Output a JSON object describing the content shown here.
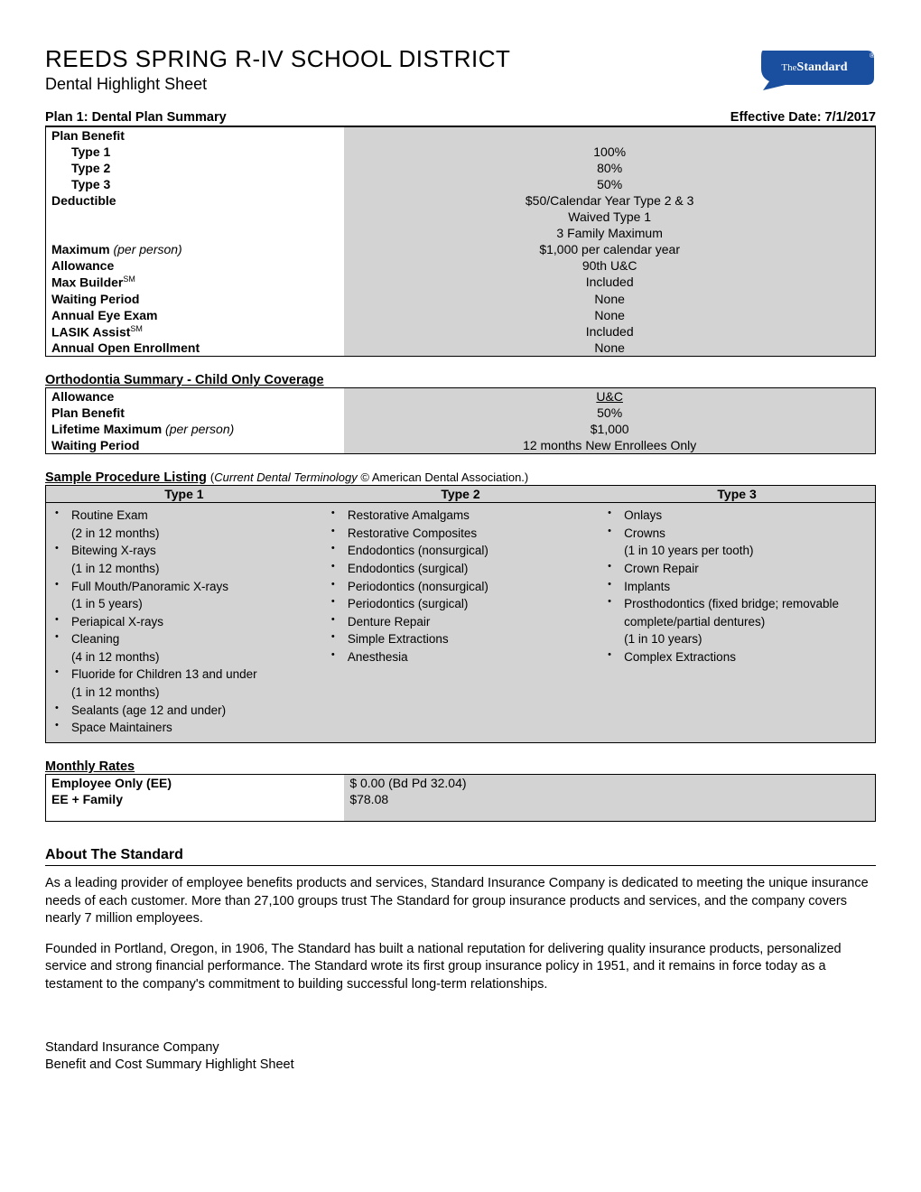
{
  "header": {
    "org": "REEDS SPRING R-IV SCHOOL DISTRICT",
    "subtitle": "Dental Highlight Sheet",
    "logo_text": "TheStandard",
    "logo_bg": "#1a4e9e",
    "logo_text_color": "#ffffff"
  },
  "plan_summary": {
    "title": "Plan 1:  Dental Plan Summary",
    "effective": "Effective Date:  7/1/2017",
    "rows": [
      {
        "label": "Plan Benefit",
        "bold": true,
        "value": ""
      },
      {
        "label": "Type 1",
        "bold": true,
        "indent": true,
        "value": "100%"
      },
      {
        "label": "Type 2",
        "bold": true,
        "indent": true,
        "value": "80%"
      },
      {
        "label": "Type 3",
        "bold": true,
        "indent": true,
        "value": "50%"
      },
      {
        "label": "Deductible",
        "bold": true,
        "value": "$50/Calendar Year Type 2 & 3"
      },
      {
        "label": "",
        "value": "Waived Type 1"
      },
      {
        "label": "",
        "value": "3 Family Maximum"
      },
      {
        "label": "Maximum",
        "bold": true,
        "suffix_italic": " (per person)",
        "value": "$1,000 per calendar year"
      },
      {
        "label": "Allowance",
        "bold": true,
        "value": "90th U&C"
      },
      {
        "label": "Max Builder",
        "bold": true,
        "sup": "SM",
        "value": "Included"
      },
      {
        "label": "Waiting Period",
        "bold": true,
        "value": "None"
      },
      {
        "label": "Annual Eye Exam",
        "bold": true,
        "value": "None"
      },
      {
        "label": "LASIK Assist",
        "bold": true,
        "sup": "SM",
        "value": "Included"
      },
      {
        "label": "Annual Open Enrollment",
        "bold": true,
        "value": "None"
      }
    ]
  },
  "ortho": {
    "title": "Orthodontia Summary - Child Only Coverage",
    "rows": [
      {
        "label": "Allowance",
        "bold": true,
        "value": "U&C",
        "underline": true
      },
      {
        "label": "Plan Benefit",
        "bold": true,
        "value": "50%"
      },
      {
        "label": "Lifetime Maximum",
        "bold": true,
        "suffix_italic": " (per person)",
        "value": "$1,000"
      },
      {
        "label": "Waiting Period",
        "bold": true,
        "value": "12 months New Enrollees Only"
      }
    ]
  },
  "sample": {
    "title": "Sample Procedure Listing",
    "note": "(Current Dental Terminology © American Dental Association.)",
    "col_heads": [
      "Type 1",
      "Type 2",
      "Type 3"
    ],
    "type1": [
      {
        "t": "Routine Exam",
        "s": "(2 in 12 months)"
      },
      {
        "t": "Bitewing X-rays",
        "s": "(1 in 12 months)"
      },
      {
        "t": "Full Mouth/Panoramic X-rays",
        "s": "(1 in 5 years)"
      },
      {
        "t": "Periapical X-rays"
      },
      {
        "t": "Cleaning",
        "s": "(4 in 12 months)"
      },
      {
        "t": "Fluoride for Children 13 and under",
        "s": "(1 in 12 months)"
      },
      {
        "t": "Sealants (age 12 and under)"
      },
      {
        "t": "Space Maintainers"
      }
    ],
    "type2": [
      {
        "t": "Restorative Amalgams"
      },
      {
        "t": "Restorative Composites"
      },
      {
        "t": "Endodontics (nonsurgical)"
      },
      {
        "t": "Endodontics (surgical)"
      },
      {
        "t": "Periodontics (nonsurgical)"
      },
      {
        "t": "Periodontics (surgical)"
      },
      {
        "t": "Denture Repair"
      },
      {
        "t": "Simple Extractions"
      },
      {
        "t": "Anesthesia"
      }
    ],
    "type3": [
      {
        "t": "Onlays"
      },
      {
        "t": "Crowns",
        "s": "(1 in 10 years per tooth)"
      },
      {
        "t": "Crown Repair"
      },
      {
        "t": "Implants"
      },
      {
        "t": "Prosthodontics (fixed bridge; removable complete/partial dentures)",
        "s": "(1 in 10 years)"
      },
      {
        "t": "Complex Extractions"
      }
    ]
  },
  "rates": {
    "title": "Monthly Rates",
    "rows": [
      {
        "label": "Employee Only (EE)",
        "value": "$  0.00 (Bd Pd 32.04)"
      },
      {
        "label": "EE + Family",
        "value": "$78.08"
      }
    ]
  },
  "about": {
    "heading": "About The Standard",
    "p1": "As a leading provider of employee benefits products and services, Standard Insurance Company is dedicated to meeting the unique insurance needs of each customer. More than 27,100 groups trust The Standard for group insurance products and services, and the company covers nearly 7 million employees.",
    "p2": "Founded in Portland, Oregon, in 1906, The Standard has built a national reputation for delivering quality insurance products, personalized service and strong financial performance. The Standard wrote its first group insurance policy in 1951, and it remains in force today as a testament to the company's commitment to building successful long-term relationships."
  },
  "footer": {
    "l1": "Standard Insurance Company",
    "l2": "Benefit and Cost Summary Highlight Sheet"
  },
  "colors": {
    "cell_gray": "#d3d3d3",
    "border": "#000000",
    "text": "#000000",
    "bg": "#ffffff"
  }
}
